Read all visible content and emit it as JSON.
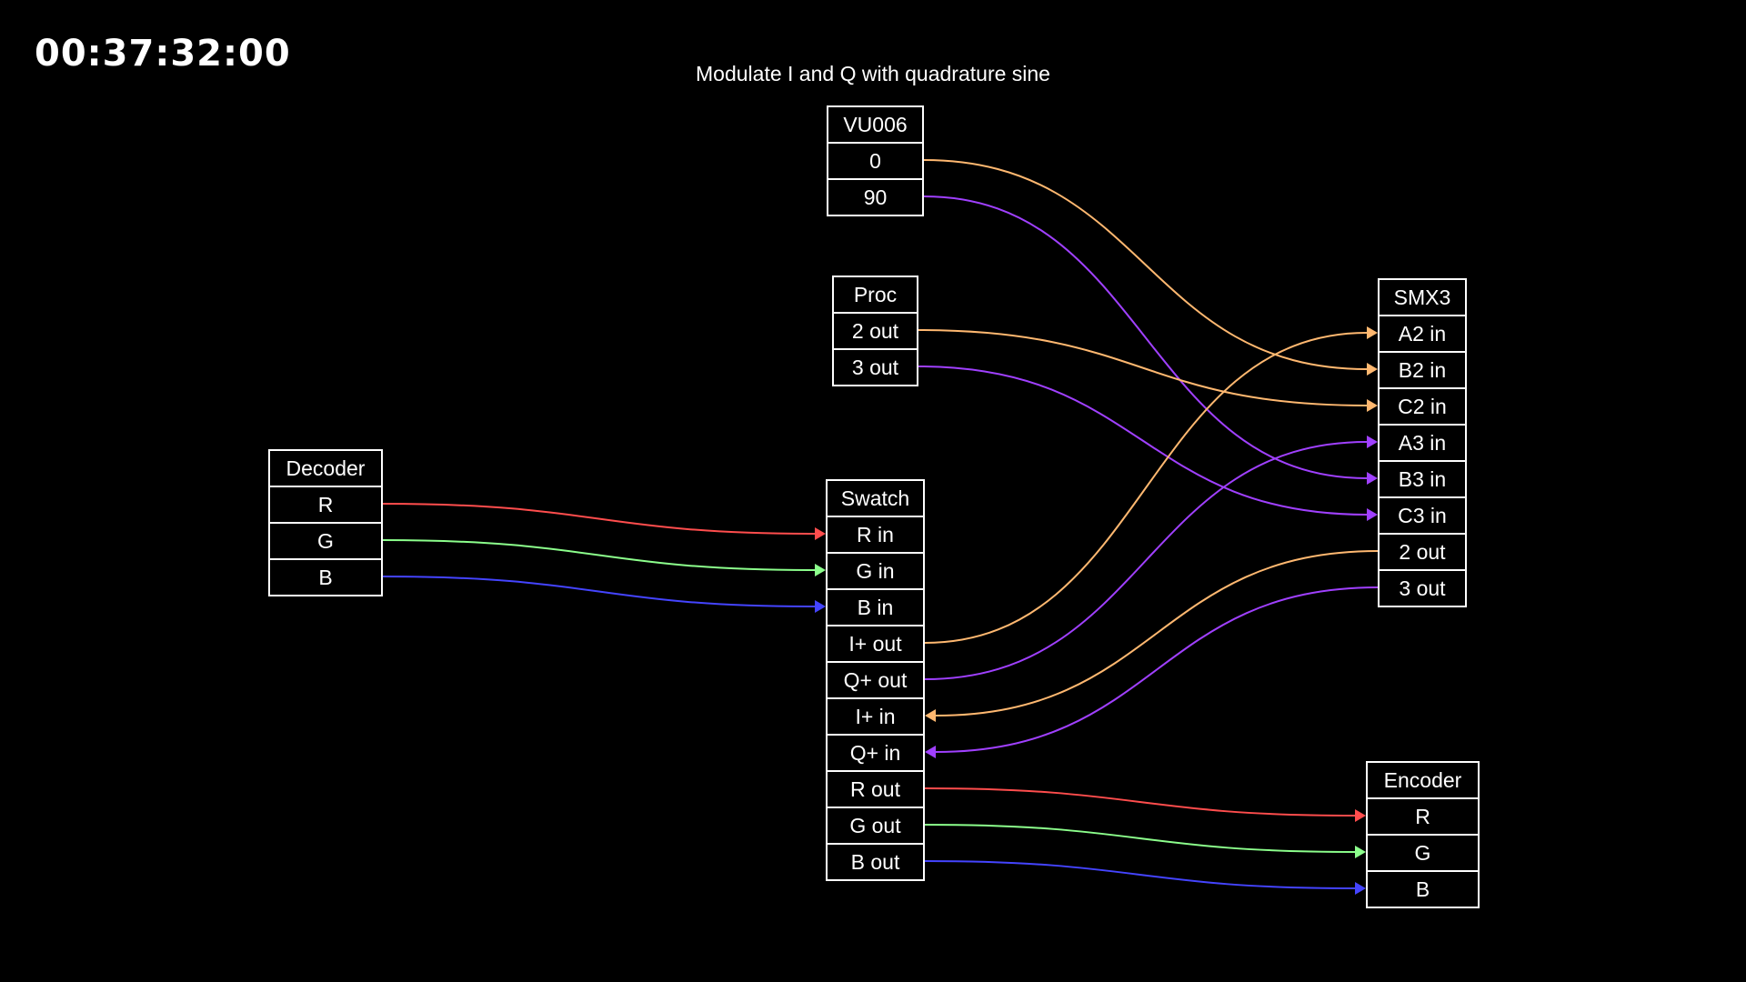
{
  "timecode": "00:37:32:00",
  "title": "Modulate I and Q with quadrature sine",
  "colors": {
    "red": "#ff4d4d",
    "green": "#8cff8c",
    "blue": "#4444ff",
    "orange": "#ffb870",
    "purple": "#a040ff"
  },
  "nodes": {
    "vu006": {
      "name": "VU006",
      "ports": [
        "0",
        "90"
      ]
    },
    "proc": {
      "name": "Proc",
      "ports": [
        "2 out",
        "3 out"
      ]
    },
    "decoder": {
      "name": "Decoder",
      "ports": [
        "R",
        "G",
        "B"
      ]
    },
    "swatch": {
      "name": "Swatch",
      "ports": [
        "R in",
        "G in",
        "B in",
        "I+ out",
        "Q+ out",
        "I+ in",
        "Q+ in",
        "R out",
        "G out",
        "B out"
      ]
    },
    "smx3": {
      "name": "SMX3",
      "ports": [
        "A2 in",
        "B2 in",
        "C2 in",
        "A3 in",
        "B3 in",
        "C3 in",
        "2 out",
        "3 out"
      ]
    },
    "encoder": {
      "name": "Encoder",
      "ports": [
        "R",
        "G",
        "B"
      ]
    }
  },
  "connections": [
    {
      "from": "decoder.R",
      "to": "swatch.R in",
      "color": "red"
    },
    {
      "from": "decoder.G",
      "to": "swatch.G in",
      "color": "green"
    },
    {
      "from": "decoder.B",
      "to": "swatch.B in",
      "color": "blue"
    },
    {
      "from": "vu006.0",
      "to": "smx3.B2 in",
      "color": "orange"
    },
    {
      "from": "vu006.90",
      "to": "smx3.B3 in",
      "color": "purple"
    },
    {
      "from": "proc.2 out",
      "to": "smx3.C2 in",
      "color": "orange"
    },
    {
      "from": "proc.3 out",
      "to": "smx3.C3 in",
      "color": "purple"
    },
    {
      "from": "swatch.I+ out",
      "to": "smx3.A2 in",
      "color": "orange"
    },
    {
      "from": "swatch.Q+ out",
      "to": "smx3.A3 in",
      "color": "purple"
    },
    {
      "from": "smx3.2 out",
      "to": "swatch.I+ in",
      "color": "orange"
    },
    {
      "from": "smx3.3 out",
      "to": "swatch.Q+ in",
      "color": "purple"
    },
    {
      "from": "swatch.R out",
      "to": "encoder.R",
      "color": "red"
    },
    {
      "from": "swatch.G out",
      "to": "encoder.G",
      "color": "green"
    },
    {
      "from": "swatch.B out",
      "to": "encoder.B",
      "color": "blue"
    }
  ]
}
